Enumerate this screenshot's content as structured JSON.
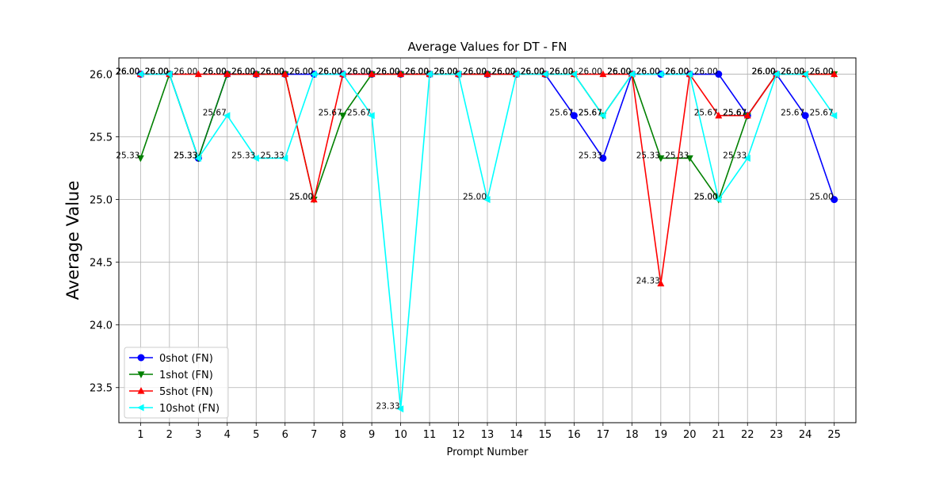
{
  "chart_data": {
    "type": "line",
    "title": "Average Values for DT - FN",
    "xlabel": "Prompt Number",
    "ylabel": "Average Value",
    "x": [
      1,
      2,
      3,
      4,
      5,
      6,
      7,
      8,
      9,
      10,
      11,
      12,
      13,
      14,
      15,
      16,
      17,
      18,
      19,
      20,
      21,
      22,
      23,
      24,
      25
    ],
    "x_tick_labels": [
      "1",
      "2",
      "3",
      "4",
      "5",
      "6",
      "7",
      "8",
      "9",
      "10",
      "11",
      "12",
      "13",
      "14",
      "15",
      "16",
      "17",
      "18",
      "19",
      "20",
      "21",
      "22",
      "23",
      "24",
      "25"
    ],
    "y_tick_labels": [
      "23.5",
      "24.0",
      "24.5",
      "25.0",
      "25.5",
      "26.0"
    ],
    "y_ticks": [
      23.5,
      24.0,
      24.5,
      25.0,
      25.5,
      26.0
    ],
    "xlim": [
      0.25,
      25.75
    ],
    "ylim": [
      23.22,
      26.13
    ],
    "grid": true,
    "legend_position": "lower-left",
    "series": [
      {
        "name": "0shot (FN)",
        "color": "#0000ff",
        "marker": "circle",
        "values": [
          26.0,
          26.0,
          25.33,
          26.0,
          26.0,
          26.0,
          26.0,
          26.0,
          26.0,
          26.0,
          26.0,
          26.0,
          26.0,
          26.0,
          26.0,
          25.67,
          25.33,
          26.0,
          26.0,
          26.0,
          26.0,
          25.67,
          26.0,
          25.67,
          25.0
        ],
        "labels": [
          "26.00",
          "26.00",
          "25.33",
          "26.00",
          "26.00",
          "26.00",
          "26.00",
          "26.00",
          "26.00",
          "26.00",
          "26.00",
          "26.00",
          "26.00",
          "26.00",
          "26.00",
          "25.67",
          "25.33",
          "26.00",
          "26.00",
          "26.00",
          "26.00",
          "25.67",
          "26.00",
          "25.67",
          "25.00"
        ]
      },
      {
        "name": "1shot (FN)",
        "color": "#008000",
        "marker": "triangle-down",
        "values": [
          25.33,
          26.0,
          25.33,
          26.0,
          26.0,
          26.0,
          25.0,
          25.67,
          26.0,
          26.0,
          26.0,
          26.0,
          26.0,
          26.0,
          26.0,
          26.0,
          25.67,
          26.0,
          25.33,
          25.33,
          25.0,
          25.67,
          26.0,
          26.0,
          26.0
        ],
        "labels": [
          "25.33",
          "26.00",
          "25.33",
          "26.00",
          "26.00",
          "26.00",
          "25.00",
          "25.67",
          "26.00",
          "26.00",
          "26.00",
          "26.00",
          "26.00",
          "26.00",
          "26.00",
          "26.00",
          "25.67",
          "26.00",
          "25.33",
          "25.33",
          "25.00",
          "25.67",
          "26.00",
          "26.00",
          "26.00"
        ]
      },
      {
        "name": "5shot (FN)",
        "color": "#ff0000",
        "marker": "triangle-up",
        "values": [
          26.0,
          26.0,
          26.0,
          26.0,
          26.0,
          26.0,
          25.0,
          26.0,
          26.0,
          26.0,
          26.0,
          26.0,
          26.0,
          26.0,
          26.0,
          26.0,
          26.0,
          26.0,
          24.33,
          26.0,
          25.67,
          25.67,
          26.0,
          26.0,
          26.0
        ],
        "labels": [
          "26.00",
          "26.00",
          "26.00",
          "26.00",
          "26.00",
          "26.00",
          "25.00",
          "26.00",
          "26.00",
          "26.00",
          "26.00",
          "26.00",
          "26.00",
          "26.00",
          "26.00",
          "26.00",
          "26.00",
          "26.00",
          "24.33",
          "26.00",
          "25.67",
          "25.67",
          "26.00",
          "26.00",
          "26.00"
        ]
      },
      {
        "name": "10shot (FN)",
        "color": "#00ffff",
        "marker": "triangle-left",
        "values": [
          26.0,
          26.0,
          25.33,
          25.67,
          25.33,
          25.33,
          26.0,
          26.0,
          25.67,
          23.33,
          26.0,
          26.0,
          25.0,
          26.0,
          26.0,
          26.0,
          25.67,
          26.0,
          26.0,
          26.0,
          25.0,
          25.33,
          26.0,
          26.0,
          25.67
        ],
        "labels": [
          "26.00",
          "26.00",
          "25.33",
          "25.67",
          "25.33",
          "25.33",
          "26.00",
          "26.00",
          "25.67",
          "23.33",
          "26.00",
          "26.00",
          "25.00",
          "26.00",
          "26.00",
          "26.00",
          "25.67",
          "26.00",
          "26.00",
          "26.00",
          "25.00",
          "25.33",
          "26.00",
          "26.00",
          "25.67"
        ]
      }
    ]
  }
}
